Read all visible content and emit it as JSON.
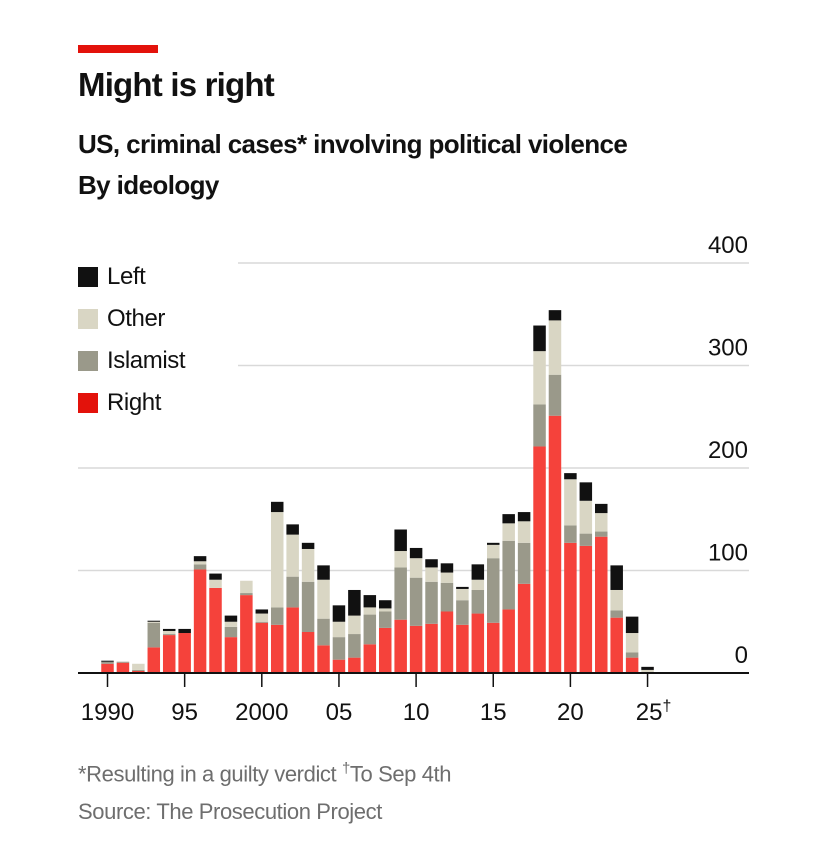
{
  "header": {
    "title": "Might is right",
    "subtitle": "US, criminal cases* involving political violence",
    "subtitle2": "By ideology"
  },
  "footer": {
    "footnote_main": "*Resulting in a guilty verdict ",
    "footnote_dagger": "†",
    "footnote_rest": "To Sep 4th",
    "source": "Source: The Prosecution Project"
  },
  "colors": {
    "accent": "#E3120B",
    "Right": "#F5423B",
    "Islamist": "#9A998A",
    "Other": "#D9D6C4",
    "Left": "#111111",
    "legend_right": "#E3120B",
    "gridline": "#d9d9d9",
    "axis": "#111111"
  },
  "legend": [
    {
      "label": "Left",
      "key": "Left"
    },
    {
      "label": "Other",
      "key": "Other"
    },
    {
      "label": "Islamist",
      "key": "Islamist"
    },
    {
      "label": "Right",
      "key": "Right"
    }
  ],
  "chart_data": {
    "type": "bar",
    "stacked": true,
    "title": "Might is right",
    "subtitle": "US, criminal cases* involving political violence — By ideology",
    "xlabel": "",
    "ylabel": "",
    "ylim": [
      0,
      400
    ],
    "yticks": [
      0,
      100,
      200,
      300,
      400
    ],
    "ytick_labels": [
      "0",
      "100",
      "200",
      "300",
      "400"
    ],
    "y_axis_position": "right",
    "grid": true,
    "legend_position": "top-left",
    "xtick_years": [
      1990,
      1995,
      2000,
      2005,
      2010,
      2015,
      2020,
      2025
    ],
    "xtick_labels": [
      "1990",
      "95",
      "2000",
      "05",
      "10",
      "15",
      "20",
      "25†"
    ],
    "categories": [
      1990,
      1991,
      1992,
      1993,
      1994,
      1995,
      1996,
      1997,
      1998,
      1999,
      2000,
      2001,
      2002,
      2003,
      2004,
      2005,
      2006,
      2007,
      2008,
      2009,
      2010,
      2011,
      2012,
      2013,
      2014,
      2015,
      2016,
      2017,
      2018,
      2019,
      2020,
      2021,
      2022,
      2023,
      2024,
      2025
    ],
    "series": [
      {
        "name": "Right",
        "values": [
          9,
          10,
          2,
          25,
          37,
          39,
          101,
          83,
          35,
          76,
          49,
          47,
          64,
          40,
          27,
          13,
          15,
          28,
          44,
          52,
          46,
          48,
          60,
          47,
          58,
          49,
          62,
          87,
          221,
          251,
          127,
          124,
          133,
          54,
          15,
          0
        ]
      },
      {
        "name": "Islamist",
        "values": [
          2,
          1,
          1,
          24,
          1,
          0,
          5,
          0,
          10,
          2,
          1,
          17,
          30,
          49,
          26,
          22,
          23,
          29,
          16,
          51,
          47,
          41,
          28,
          24,
          23,
          63,
          67,
          40,
          41,
          40,
          17,
          12,
          5,
          7,
          5,
          1
        ]
      },
      {
        "name": "Other",
        "values": [
          0,
          0,
          6,
          1,
          3,
          0,
          3,
          8,
          5,
          12,
          8,
          93,
          41,
          32,
          38,
          15,
          18,
          7,
          3,
          16,
          19,
          14,
          10,
          11,
          10,
          13,
          17,
          21,
          52,
          53,
          45,
          32,
          18,
          20,
          19,
          2
        ]
      },
      {
        "name": "Left",
        "values": [
          1,
          0,
          0,
          1,
          2,
          4,
          5,
          6,
          6,
          0,
          4,
          10,
          10,
          6,
          14,
          16,
          25,
          12,
          8,
          21,
          10,
          8,
          9,
          2,
          15,
          2,
          9,
          9,
          25,
          10,
          6,
          18,
          9,
          24,
          16,
          3
        ]
      }
    ]
  }
}
